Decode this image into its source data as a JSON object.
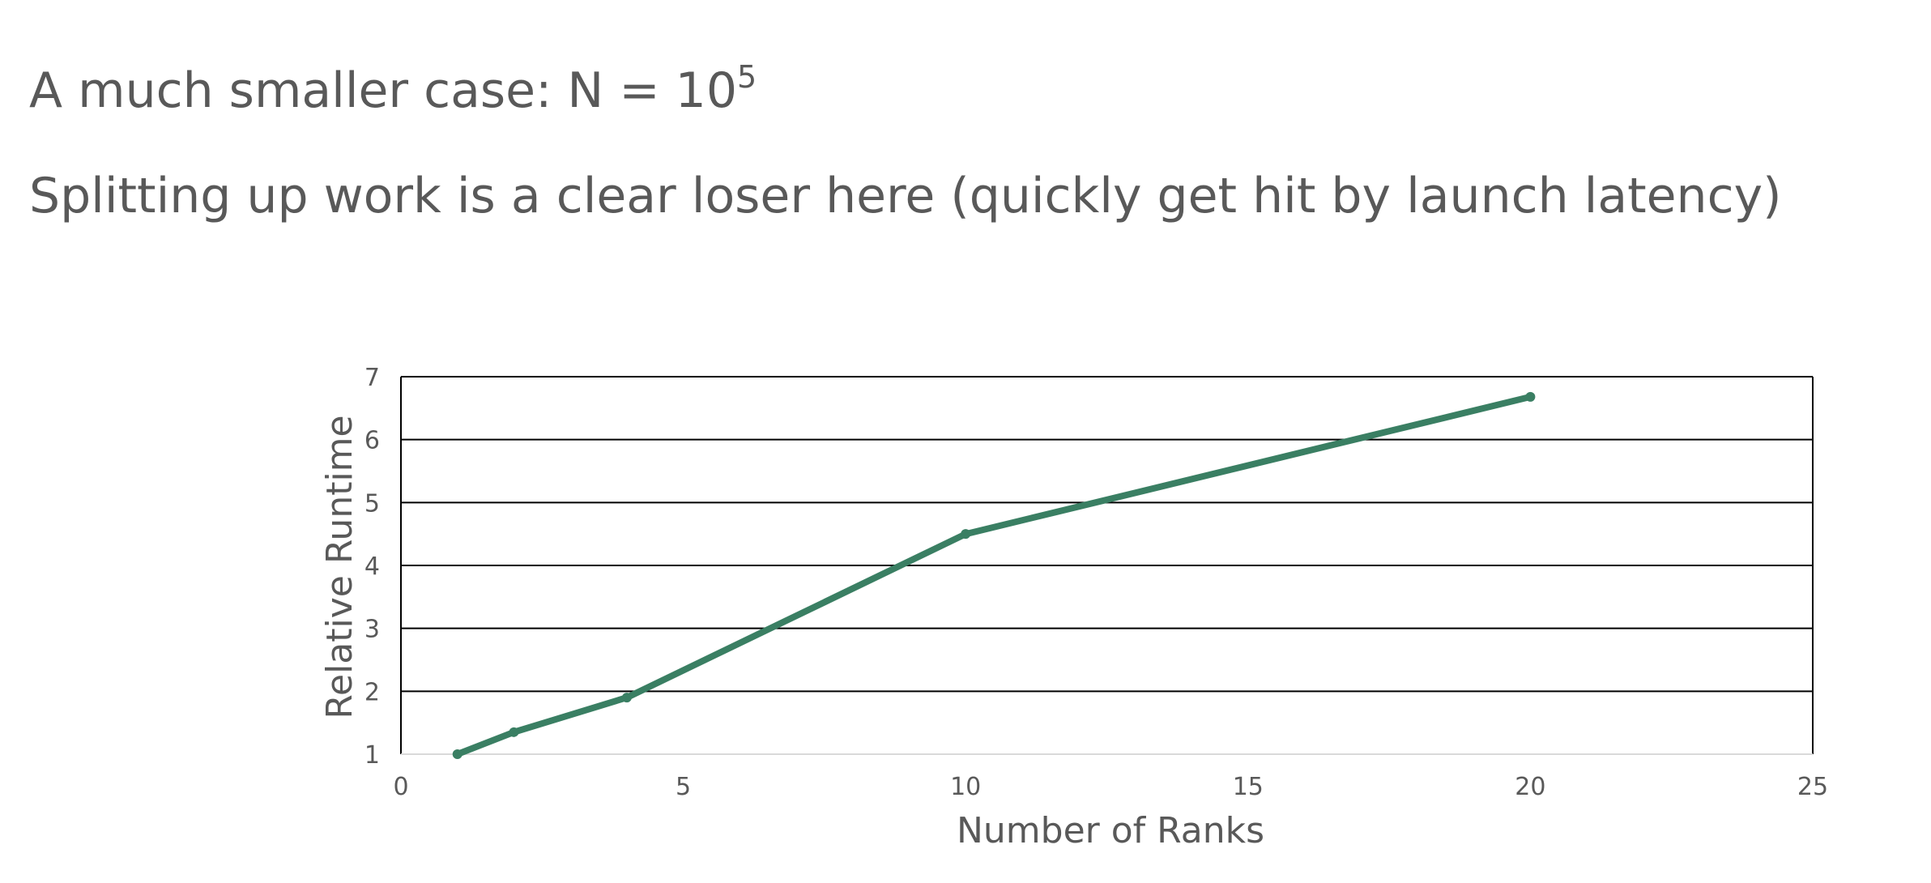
{
  "slide": {
    "title_text": "A much smaller case: N = 10",
    "title_exponent": "5",
    "subtitle": "Splitting up work is a clear loser here (quickly get hit by launch latency)"
  },
  "colors": {
    "text": "#595959",
    "series": "#3a7f63",
    "gridline": "#000000"
  },
  "chart_data": {
    "type": "line",
    "title": "",
    "xlabel": "Number of Ranks",
    "ylabel": "Relative Runtime",
    "xlim": [
      0,
      25
    ],
    "ylim": [
      1,
      7
    ],
    "xticks": [
      0,
      5,
      10,
      15,
      20,
      25
    ],
    "yticks": [
      1,
      2,
      3,
      4,
      5,
      6,
      7
    ],
    "grid": "horizontal",
    "legend": "none",
    "series": [
      {
        "x": [
          1,
          2,
          4,
          10,
          20
        ],
        "y": [
          1.0,
          1.35,
          1.9,
          4.5,
          6.68
        ]
      }
    ]
  }
}
